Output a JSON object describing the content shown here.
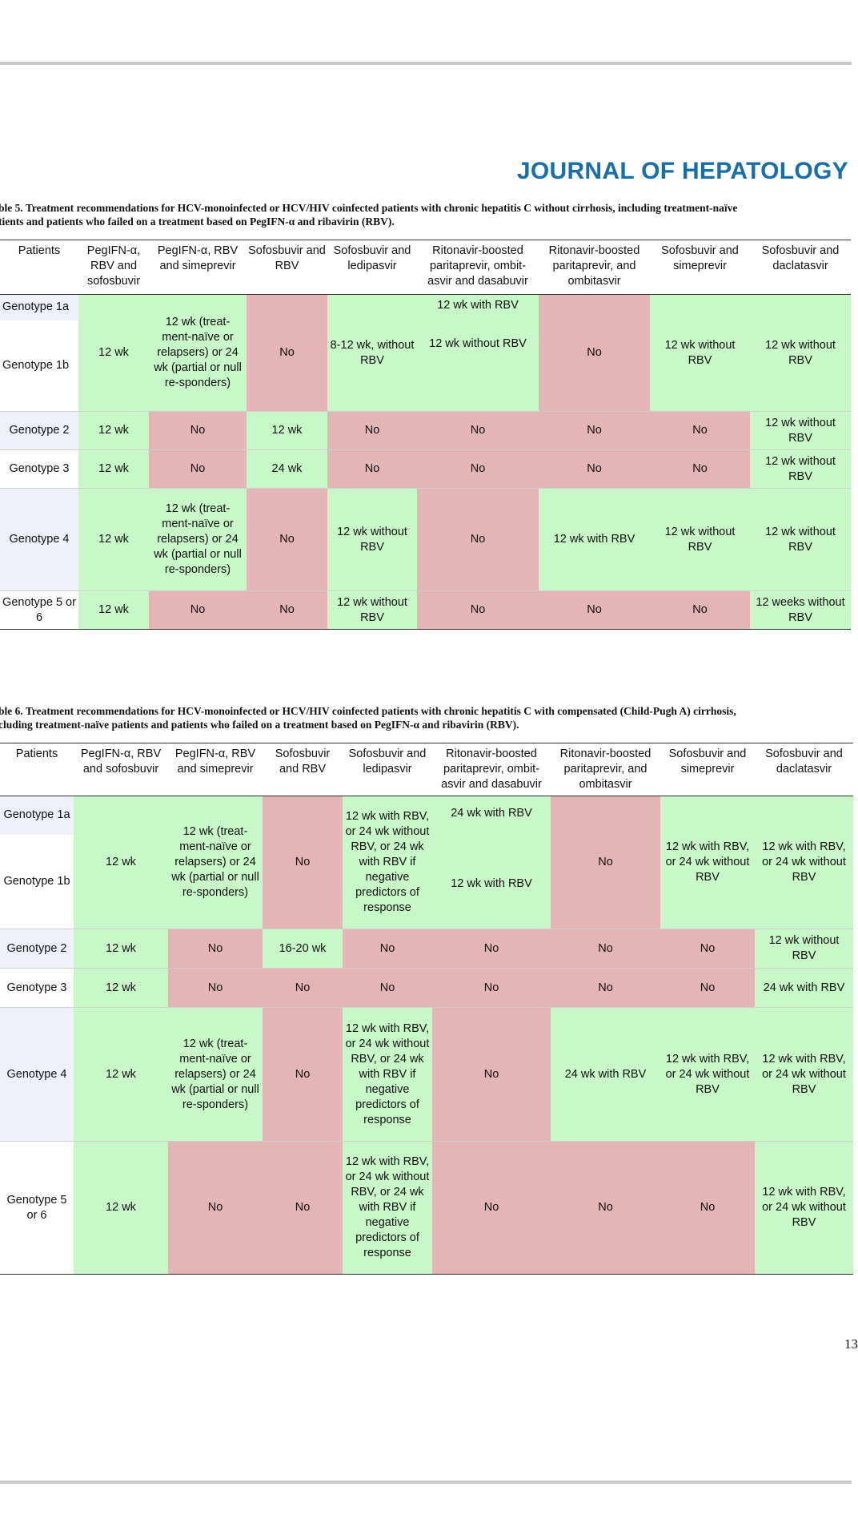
{
  "journal_title": "JOURNAL OF HEPATOLOGY",
  "page_number": "13",
  "table5": {
    "caption_label": "ble 5.",
    "caption_line1": " Treatment recommendations for HCV-monoinfected or HCV/HIV coinfected patients with chronic hepatitis C without cirrhosis, including treatment-naïve",
    "caption_line2": "tients and patients who failed on a treatment based on PegIFN-α and ribavirin (RBV).",
    "headers": [
      "Patients",
      "PegIFN-α, RBV and sofosbuvir",
      "PegIFN-α, RBV and simeprevir",
      "Sofosbuvir and RBV",
      "Sofosbuvir and ledipasvir",
      "Ritonavir-boosted paritaprevir, ombit-asvir and dasabuvir",
      "Ritonavir-boosted paritaprevir, and ombitasvir",
      "Sofosbuvir and simeprevir",
      "Sofosbuvir and daclatasvir"
    ],
    "rows": {
      "g1a": "Genotype 1a",
      "g1b": "Genotype 1b",
      "g1_pegsof": "12 wk",
      "g1_pegsim": "12 wk (treat-ment-naïve or relapsers) or 24 wk (partial or null re-sponders)",
      "g1_sofrbv": "No",
      "g1_sofled": "8-12 wk, without RBV",
      "g1a_rit3": "12 wk with RBV",
      "g1b_rit3": "12 wk without RBV",
      "g1_rit2": "No",
      "g1_sofsim": "12 wk without RBV",
      "g1_sofdac": "12 wk without RBV",
      "g2": [
        "Genotype 2",
        "12 wk",
        "No",
        "12 wk",
        "No",
        "No",
        "No",
        "No",
        "12 wk without RBV"
      ],
      "g3": [
        "Genotype 3",
        "12 wk",
        "No",
        "24 wk",
        "No",
        "No",
        "No",
        "No",
        "12 wk without RBV"
      ],
      "g4": [
        "Genotype 4",
        "12 wk",
        "12 wk (treat-ment-naïve or relapsers) or 24 wk (partial or null re-sponders)",
        "No",
        "12 wk without RBV",
        "No",
        "12 wk with RBV",
        "12 wk without RBV",
        "12 wk without RBV"
      ],
      "g56": [
        "Genotype 5 or 6",
        "12 wk",
        "No",
        "No",
        "12 wk without RBV",
        "No",
        "No",
        "No",
        "12 weeks without RBV"
      ]
    }
  },
  "table6": {
    "caption_label": "ble 6.",
    "caption_line1": " Treatment recommendations for HCV-monoinfected or HCV/HIV coinfected patients with chronic hepatitis C with compensated (Child-Pugh A) cirrhosis,",
    "caption_line2": "cluding treatment-naïve patients and patients who failed on a treatment based on PegIFN-α and ribavirin (RBV).",
    "headers": [
      "Patients",
      "PegIFN-α, RBV and sofosbuvir",
      "PegIFN-α, RBV and simeprevir",
      "Sofosbuvir and RBV",
      "Sofosbuvir and ledipasvir",
      "Ritonavir-boosted paritaprevir, ombit-asvir and dasabuvir",
      "Ritonavir-boosted paritaprevir, and ombitasvir",
      "Sofosbuvir and simeprevir",
      "Sofosbuvir and daclatasvir"
    ],
    "rows": {
      "g1a": "Genotype 1a",
      "g1b": "Genotype 1b",
      "g1_pegsof": "12 wk",
      "g1_pegsim": "12 wk (treat-ment-naïve or relapsers) or 24 wk (partial or null re-sponders)",
      "g1_sofrbv": "No",
      "g1_sofled": "12 wk with RBV, or 24 wk without RBV, or 24 wk with RBV if negative predictors of response",
      "g1a_rit3": "24 wk with RBV",
      "g1b_rit3": "12 wk with RBV",
      "g1_rit2": "No",
      "g1_sofsim": "12 wk with RBV, or 24 wk without RBV",
      "g1_sofdac": "12 wk with RBV, or 24 wk without RBV",
      "g2": [
        "Genotype 2",
        "12 wk",
        "No",
        "16-20 wk",
        "No",
        "No",
        "No",
        "No",
        "12 wk without RBV"
      ],
      "g3": [
        "Genotype 3",
        "12 wk",
        "No",
        "No",
        "No",
        "No",
        "No",
        "No",
        "24 wk with RBV"
      ],
      "g4": [
        "Genotype 4",
        "12 wk",
        "12 wk (treat-ment-naïve or relapsers) or 24 wk (partial or null re-sponders)",
        "No",
        "12 wk with RBV, or 24 wk without RBV, or 24 wk with RBV if negative predictors of response",
        "No",
        "24 wk with RBV",
        "12 wk with RBV, or 24 wk without RBV",
        "12 wk with RBV, or 24 wk without RBV"
      ],
      "g56": [
        "Genotype 5 or 6",
        "12 wk",
        "No",
        "No",
        "12 wk with RBV, or 24 wk without RBV, or 24 wk with RBV if negative predictors of response",
        "No",
        "No",
        "No",
        "12 wk with RBV, or 24 wk without RBV"
      ]
    }
  }
}
